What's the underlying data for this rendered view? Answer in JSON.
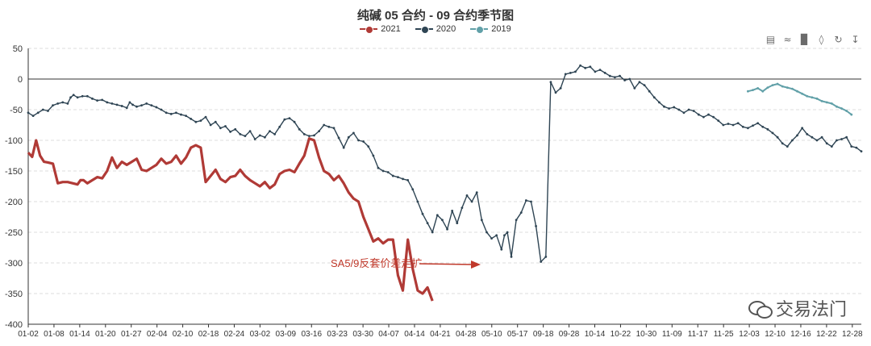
{
  "title": "纯碱 05 合约 - 09 合约季节图",
  "legend": [
    {
      "name": "2021",
      "color": "#b03a36"
    },
    {
      "name": "2020",
      "color": "#2f4554"
    },
    {
      "name": "2019",
      "color": "#61a0a8"
    }
  ],
  "toolbox": [
    "data-view-icon",
    "line-chart-icon",
    "bar-chart-icon",
    "stack-icon",
    "restore-icon",
    "save-image-icon"
  ],
  "annotation": "SA5/9反套价差走扩",
  "watermark_text": "交易法门",
  "chart_data": {
    "type": "line",
    "title": "纯碱 05 合约 - 09 合约季节图",
    "ylim": [
      -400,
      50
    ],
    "yticks": [
      50,
      0,
      -50,
      -100,
      -150,
      -200,
      -250,
      -300,
      -350,
      -400
    ],
    "xticks": [
      "01-02",
      "01-08",
      "01-14",
      "01-20",
      "01-27",
      "02-04",
      "02-10",
      "02-18",
      "02-24",
      "03-02",
      "03-09",
      "03-16",
      "03-23",
      "03-30",
      "04-07",
      "04-14",
      "04-21",
      "04-28",
      "05-10",
      "05-17",
      "09-18",
      "09-28",
      "10-14",
      "10-22",
      "10-30",
      "11-09",
      "11-17",
      "11-25",
      "12-03",
      "12-10",
      "12-16",
      "12-22",
      "12-28"
    ],
    "grid": true,
    "series": [
      {
        "name": "2020",
        "color": "#2f4554",
        "points": [
          [
            0,
            -55
          ],
          [
            0.5,
            -60
          ],
          [
            1,
            -55
          ],
          [
            1.5,
            -50
          ],
          [
            2,
            -52
          ],
          [
            2.5,
            -43
          ],
          [
            3,
            -40
          ],
          [
            3.5,
            -38
          ],
          [
            4,
            -40
          ],
          [
            4.3,
            -30
          ],
          [
            4.6,
            -26
          ],
          [
            5,
            -30
          ],
          [
            5.5,
            -28
          ],
          [
            6,
            -28
          ],
          [
            6.5,
            -32
          ],
          [
            7,
            -35
          ],
          [
            7.5,
            -34
          ],
          [
            8,
            -38
          ],
          [
            8.5,
            -40
          ],
          [
            9,
            -42
          ],
          [
            9.5,
            -44
          ],
          [
            10,
            -47
          ],
          [
            10.3,
            -38
          ],
          [
            10.6,
            -42
          ],
          [
            11,
            -45
          ],
          [
            11.5,
            -43
          ],
          [
            12,
            -40
          ],
          [
            12.5,
            -43
          ],
          [
            13,
            -46
          ],
          [
            13.5,
            -50
          ],
          [
            14,
            -55
          ],
          [
            14.5,
            -57
          ],
          [
            15,
            -55
          ],
          [
            15.5,
            -58
          ],
          [
            16,
            -60
          ],
          [
            16.5,
            -65
          ],
          [
            17,
            -70
          ],
          [
            17.5,
            -68
          ],
          [
            18,
            -62
          ],
          [
            18.5,
            -75
          ],
          [
            19,
            -70
          ],
          [
            19.5,
            -80
          ],
          [
            20,
            -77
          ],
          [
            20.5,
            -86
          ],
          [
            21,
            -82
          ],
          [
            21.5,
            -90
          ],
          [
            22,
            -93
          ],
          [
            22.5,
            -85
          ],
          [
            23,
            -98
          ],
          [
            23.5,
            -92
          ],
          [
            24,
            -95
          ],
          [
            24.5,
            -85
          ],
          [
            25,
            -90
          ],
          [
            25.5,
            -78
          ],
          [
            26,
            -66
          ],
          [
            26.5,
            -64
          ],
          [
            27,
            -70
          ],
          [
            27.5,
            -82
          ],
          [
            28,
            -90
          ],
          [
            28.5,
            -93
          ],
          [
            29,
            -92
          ],
          [
            29.5,
            -85
          ],
          [
            30,
            -75
          ],
          [
            30.5,
            -78
          ],
          [
            31,
            -80
          ],
          [
            31.5,
            -96
          ],
          [
            32,
            -112
          ],
          [
            32.5,
            -95
          ],
          [
            33,
            -88
          ],
          [
            33.5,
            -100
          ],
          [
            34,
            -102
          ],
          [
            34.5,
            -110
          ],
          [
            35,
            -125
          ],
          [
            35.5,
            -145
          ],
          [
            36,
            -150
          ],
          [
            36.5,
            -152
          ],
          [
            37,
            -158
          ],
          [
            37.5,
            -160
          ],
          [
            38,
            -163
          ],
          [
            38.5,
            -165
          ],
          [
            39,
            -180
          ],
          [
            39.5,
            -200
          ],
          [
            40,
            -220
          ],
          [
            40.5,
            -235
          ],
          [
            41,
            -250
          ],
          [
            41.5,
            -222
          ],
          [
            42,
            -230
          ],
          [
            42.5,
            -245
          ],
          [
            43,
            -215
          ],
          [
            43.5,
            -235
          ],
          [
            44,
            -210
          ],
          [
            44.5,
            -190
          ],
          [
            45,
            -200
          ],
          [
            45.5,
            -185
          ],
          [
            46,
            -230
          ],
          [
            46.5,
            -250
          ],
          [
            47,
            -260
          ],
          [
            47.5,
            -255
          ],
          [
            48,
            -278
          ],
          [
            48.3,
            -255
          ],
          [
            48.6,
            -250
          ],
          [
            49,
            -290
          ],
          [
            49.5,
            -230
          ],
          [
            50,
            -218
          ],
          [
            50.5,
            -198
          ],
          [
            51,
            -200
          ],
          [
            51.5,
            -240
          ],
          [
            52,
            -298
          ],
          [
            52.5,
            -290
          ],
          [
            53,
            -5
          ],
          [
            53.5,
            -22
          ],
          [
            54,
            -15
          ],
          [
            54.5,
            8
          ],
          [
            55,
            10
          ],
          [
            55.5,
            12
          ],
          [
            56,
            22
          ],
          [
            56.5,
            18
          ],
          [
            57,
            20
          ],
          [
            57.5,
            12
          ],
          [
            58,
            15
          ],
          [
            58.5,
            10
          ],
          [
            59,
            5
          ],
          [
            59.5,
            3
          ],
          [
            60,
            5
          ],
          [
            60.5,
            -2
          ],
          [
            61,
            0
          ],
          [
            61.5,
            -15
          ],
          [
            62,
            -5
          ],
          [
            62.5,
            -10
          ],
          [
            63,
            -20
          ],
          [
            63.5,
            -30
          ],
          [
            64,
            -38
          ],
          [
            64.5,
            -45
          ],
          [
            65,
            -48
          ],
          [
            65.5,
            -46
          ],
          [
            66,
            -50
          ],
          [
            66.5,
            -55
          ],
          [
            67,
            -50
          ],
          [
            67.5,
            -52
          ],
          [
            68,
            -58
          ],
          [
            68.5,
            -62
          ],
          [
            69,
            -58
          ],
          [
            69.5,
            -62
          ],
          [
            70,
            -68
          ],
          [
            70.5,
            -75
          ],
          [
            71,
            -73
          ],
          [
            71.5,
            -75
          ],
          [
            72,
            -72
          ],
          [
            72.5,
            -78
          ],
          [
            73,
            -80
          ],
          [
            73.5,
            -76
          ],
          [
            74,
            -72
          ],
          [
            74.5,
            -78
          ],
          [
            75,
            -82
          ],
          [
            75.5,
            -88
          ],
          [
            76,
            -95
          ],
          [
            76.5,
            -105
          ],
          [
            77,
            -110
          ],
          [
            77.5,
            -100
          ],
          [
            78,
            -92
          ],
          [
            78.5,
            -80
          ],
          [
            79,
            -90
          ],
          [
            79.5,
            -95
          ],
          [
            80,
            -100
          ],
          [
            80.5,
            -95
          ],
          [
            81,
            -105
          ],
          [
            81.5,
            -110
          ],
          [
            82,
            -100
          ],
          [
            82.5,
            -98
          ],
          [
            83,
            -95
          ],
          [
            83.5,
            -110
          ],
          [
            84,
            -112
          ],
          [
            84.5,
            -118
          ]
        ]
      },
      {
        "name": "2021",
        "color": "#b03a36",
        "points": [
          [
            0,
            -120
          ],
          [
            0.4,
            -127
          ],
          [
            0.8,
            -100
          ],
          [
            1.2,
            -125
          ],
          [
            1.6,
            -135
          ],
          [
            2,
            -136
          ],
          [
            2.5,
            -138
          ],
          [
            3,
            -170
          ],
          [
            3.5,
            -168
          ],
          [
            4,
            -168
          ],
          [
            4.5,
            -170
          ],
          [
            5,
            -172
          ],
          [
            5.3,
            -165
          ],
          [
            5.6,
            -165
          ],
          [
            6,
            -170
          ],
          [
            6.5,
            -165
          ],
          [
            7,
            -160
          ],
          [
            7.5,
            -162
          ],
          [
            8,
            -150
          ],
          [
            8.5,
            -128
          ],
          [
            9,
            -145
          ],
          [
            9.5,
            -135
          ],
          [
            10,
            -140
          ],
          [
            10.5,
            -135
          ],
          [
            11,
            -130
          ],
          [
            11.5,
            -148
          ],
          [
            12,
            -150
          ],
          [
            12.5,
            -145
          ],
          [
            13,
            -140
          ],
          [
            13.5,
            -130
          ],
          [
            14,
            -138
          ],
          [
            14.5,
            -135
          ],
          [
            15,
            -125
          ],
          [
            15.5,
            -138
          ],
          [
            16,
            -128
          ],
          [
            16.5,
            -112
          ],
          [
            17,
            -108
          ],
          [
            17.5,
            -112
          ],
          [
            18,
            -168
          ],
          [
            18.5,
            -158
          ],
          [
            19,
            -148
          ],
          [
            19.5,
            -163
          ],
          [
            20,
            -168
          ],
          [
            20.5,
            -160
          ],
          [
            21,
            -158
          ],
          [
            21.5,
            -148
          ],
          [
            22,
            -158
          ],
          [
            22.5,
            -165
          ],
          [
            23,
            -170
          ],
          [
            23.5,
            -175
          ],
          [
            24,
            -168
          ],
          [
            24.5,
            -178
          ],
          [
            25,
            -172
          ],
          [
            25.5,
            -155
          ],
          [
            26,
            -150
          ],
          [
            26.5,
            -148
          ],
          [
            27,
            -152
          ],
          [
            27.5,
            -138
          ],
          [
            28,
            -125
          ],
          [
            28.5,
            -97
          ],
          [
            29,
            -100
          ],
          [
            29.5,
            -128
          ],
          [
            30,
            -150
          ],
          [
            30.5,
            -155
          ],
          [
            31,
            -165
          ],
          [
            31.5,
            -158
          ],
          [
            32,
            -170
          ],
          [
            32.5,
            -185
          ],
          [
            33,
            -195
          ],
          [
            33.5,
            -200
          ],
          [
            34,
            -225
          ],
          [
            34.5,
            -245
          ],
          [
            35,
            -265
          ],
          [
            35.5,
            -260
          ],
          [
            36,
            -268
          ],
          [
            36.5,
            -262
          ],
          [
            37,
            -262
          ],
          [
            37.5,
            -320
          ],
          [
            38,
            -345
          ],
          [
            38.5,
            -262
          ],
          [
            39,
            -310
          ],
          [
            39.5,
            -345
          ],
          [
            40,
            -350
          ],
          [
            40.5,
            -340
          ],
          [
            41,
            -362
          ]
        ]
      },
      {
        "name": "2019",
        "color": "#61a0a8",
        "points": [
          [
            73,
            -20
          ],
          [
            73.5,
            -18
          ],
          [
            74,
            -15
          ],
          [
            74.5,
            -20
          ],
          [
            75,
            -14
          ],
          [
            75.5,
            -10
          ],
          [
            76,
            -8
          ],
          [
            76.5,
            -12
          ],
          [
            77,
            -14
          ],
          [
            77.5,
            -16
          ],
          [
            78,
            -20
          ],
          [
            78.5,
            -24
          ],
          [
            79,
            -28
          ],
          [
            79.5,
            -30
          ],
          [
            80,
            -32
          ],
          [
            80.5,
            -36
          ],
          [
            81,
            -38
          ],
          [
            81.5,
            -40
          ],
          [
            82,
            -45
          ],
          [
            82.5,
            -48
          ],
          [
            83,
            -52
          ],
          [
            83.5,
            -58
          ]
        ]
      }
    ]
  }
}
